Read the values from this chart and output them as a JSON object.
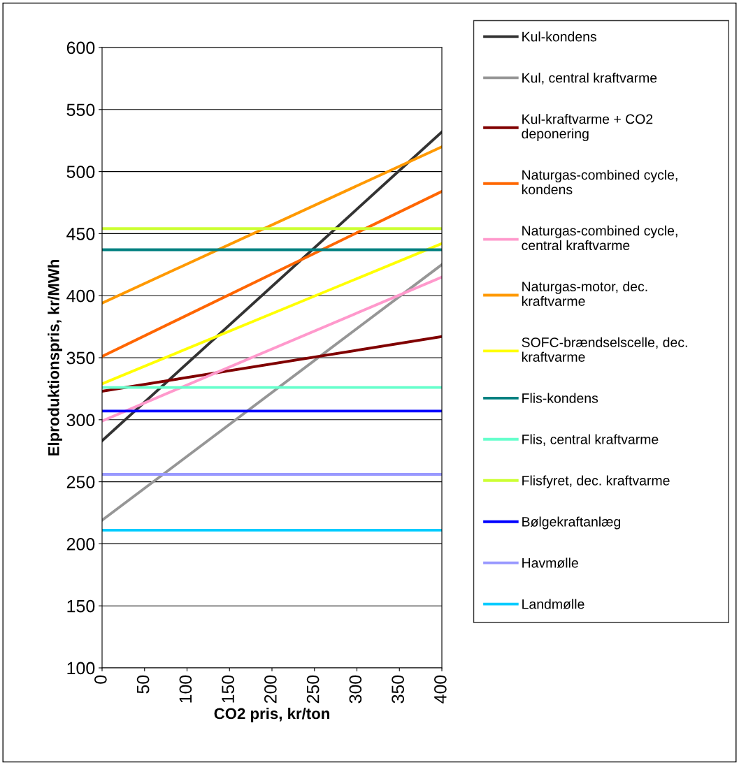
{
  "chart_data": {
    "type": "line",
    "xlabel": "CO2 pris, kr/ton",
    "ylabel": "Elproduktionspris, kr/MWh",
    "x": [
      0,
      400
    ],
    "xlim": [
      0,
      400
    ],
    "xticks": [
      0,
      50,
      100,
      150,
      200,
      250,
      300,
      350,
      400
    ],
    "ylim": [
      100,
      600
    ],
    "yticks": [
      100,
      150,
      200,
      250,
      300,
      350,
      400,
      450,
      500,
      550,
      600
    ],
    "grid": "y",
    "legend": "right",
    "marker": "none",
    "line_style": "solid",
    "series": [
      {
        "name": "Kul-kondens",
        "color": "#333333",
        "values": [
          283,
          532
        ]
      },
      {
        "name": "Kul, central kraftvarme",
        "color": "#969696",
        "values": [
          219,
          425
        ]
      },
      {
        "name": "Kul-kraftvarme + CO2\ndeponering",
        "color": "#800000",
        "values": [
          323,
          367
        ]
      },
      {
        "name": "Naturgas-combined cycle,\nkondens",
        "color": "#ff6600",
        "values": [
          351,
          484
        ]
      },
      {
        "name": "Naturgas-combined cycle,\ncentral kraftvarme",
        "color": "#ff99cc",
        "values": [
          299,
          415
        ]
      },
      {
        "name": "Naturgas-motor, dec.\nkraftvarme",
        "color": "#ff9900",
        "values": [
          394,
          520
        ]
      },
      {
        "name": "SOFC-brændselscelle, dec.\nkraftvarme",
        "color": "#ffff00",
        "values": [
          329,
          442
        ]
      },
      {
        "name": "Flis-kondens",
        "color": "#008080",
        "values": [
          437,
          437
        ]
      },
      {
        "name": "Flis, central kraftvarme",
        "color": "#66ffcc",
        "values": [
          326,
          326
        ]
      },
      {
        "name": "Flisfyret, dec. kraftvarme",
        "color": "#ccff33",
        "values": [
          454,
          454
        ]
      },
      {
        "name": "Bølgekraftanlæg",
        "color": "#0000ff",
        "values": [
          307,
          307
        ]
      },
      {
        "name": "Havmølle",
        "color": "#9999ff",
        "values": [
          256,
          256
        ]
      },
      {
        "name": "Landmølle",
        "color": "#00ccff",
        "values": [
          211,
          211
        ]
      }
    ]
  }
}
